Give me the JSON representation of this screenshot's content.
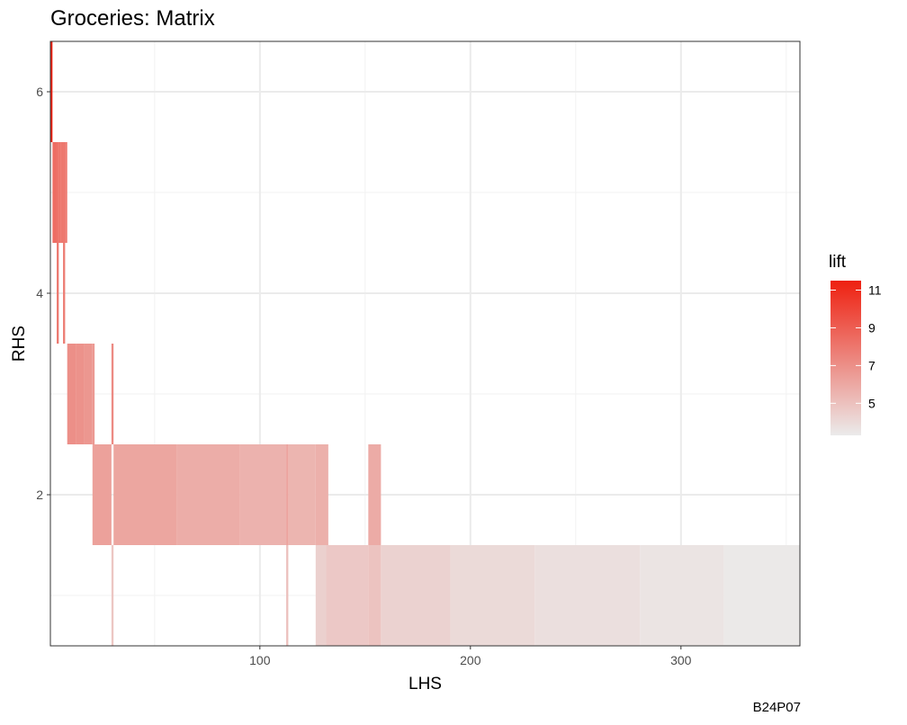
{
  "chart_data": {
    "type": "heatmap",
    "title": "Groceries: Matrix",
    "xlabel": "LHS",
    "ylabel": "RHS",
    "caption": "B24P07",
    "xlim": [
      0.5,
      356.5
    ],
    "ylim": [
      0.5,
      6.5
    ],
    "x_ticks": [
      100,
      200,
      300
    ],
    "y_ticks": [
      2,
      4,
      6
    ],
    "grid": true,
    "legend": {
      "title": "lift",
      "placement": "right",
      "range": [
        3.3,
        11.5
      ],
      "ticks": [
        5,
        7,
        9,
        11
      ],
      "color_low": "#ebebeb",
      "color_high": "#ee2010"
    },
    "cells": [
      {
        "rhs": 6,
        "lhs_from": 0.5,
        "lhs_to": 1.5,
        "lift": 11.4
      },
      {
        "rhs": 5,
        "lhs_from": 1.5,
        "lhs_to": 3.5,
        "lift": 8.4
      },
      {
        "rhs": 5,
        "lhs_from": 3.5,
        "lhs_to": 4.5,
        "lift": 8.2
      },
      {
        "rhs": 5,
        "lhs_from": 4.5,
        "lhs_to": 5.5,
        "lift": 8.3
      },
      {
        "rhs": 5,
        "lhs_from": 5.5,
        "lhs_to": 6.5,
        "lift": 8.0
      },
      {
        "rhs": 5,
        "lhs_from": 6.5,
        "lhs_to": 7.5,
        "lift": 8.1
      },
      {
        "rhs": 5,
        "lhs_from": 7.5,
        "lhs_to": 8.5,
        "lift": 7.9
      },
      {
        "rhs": 4,
        "lhs_from": 3.5,
        "lhs_to": 4.5,
        "lift": 7.9
      },
      {
        "rhs": 4,
        "lhs_from": 6.5,
        "lhs_to": 7.5,
        "lift": 7.7
      },
      {
        "rhs": 3,
        "lhs_from": 8.5,
        "lhs_to": 12.5,
        "lift": 7.0
      },
      {
        "rhs": 3,
        "lhs_from": 12.5,
        "lhs_to": 16.5,
        "lift": 6.9
      },
      {
        "rhs": 3,
        "lhs_from": 16.5,
        "lhs_to": 20.5,
        "lift": 6.7
      },
      {
        "rhs": 3,
        "lhs_from": 20.5,
        "lhs_to": 21.5,
        "lift": 6.6
      },
      {
        "rhs": 3,
        "lhs_from": 29.5,
        "lhs_to": 30.5,
        "lift": 7.2
      },
      {
        "rhs": 2,
        "lhs_from": 20.5,
        "lhs_to": 29.5,
        "lift": 6.3
      },
      {
        "rhs": 2,
        "lhs_from": 30.5,
        "lhs_to": 60.5,
        "lift": 6.1
      },
      {
        "rhs": 2,
        "lhs_from": 60.5,
        "lhs_to": 90.5,
        "lift": 5.8
      },
      {
        "rhs": 2,
        "lhs_from": 90.5,
        "lhs_to": 112.5,
        "lift": 5.6
      },
      {
        "rhs": 2,
        "lhs_from": 112.5,
        "lhs_to": 113.5,
        "lift": 6.2
      },
      {
        "rhs": 2,
        "lhs_from": 113.5,
        "lhs_to": 126.5,
        "lift": 5.5
      },
      {
        "rhs": 2,
        "lhs_from": 126.5,
        "lhs_to": 132.5,
        "lift": 5.7
      },
      {
        "rhs": 2,
        "lhs_from": 151.5,
        "lhs_to": 157.5,
        "lift": 5.9
      },
      {
        "rhs": 1,
        "lhs_from": 29.5,
        "lhs_to": 30.5,
        "lift": 4.8
      },
      {
        "rhs": 1,
        "lhs_from": 112.5,
        "lhs_to": 113.5,
        "lift": 5.0
      },
      {
        "rhs": 1,
        "lhs_from": 126.5,
        "lhs_to": 131.5,
        "lift": 4.4
      },
      {
        "rhs": 1,
        "lhs_from": 131.5,
        "lhs_to": 151.5,
        "lift": 4.7
      },
      {
        "rhs": 1,
        "lhs_from": 151.5,
        "lhs_to": 157.5,
        "lift": 4.9
      },
      {
        "rhs": 1,
        "lhs_from": 157.5,
        "lhs_to": 190.5,
        "lift": 4.3
      },
      {
        "rhs": 1,
        "lhs_from": 190.5,
        "lhs_to": 230.5,
        "lift": 4.0
      },
      {
        "rhs": 1,
        "lhs_from": 230.5,
        "lhs_to": 280.5,
        "lift": 3.8
      },
      {
        "rhs": 1,
        "lhs_from": 280.5,
        "lhs_to": 320.5,
        "lift": 3.6
      },
      {
        "rhs": 1,
        "lhs_from": 320.5,
        "lhs_to": 356.5,
        "lift": 3.4
      }
    ]
  }
}
